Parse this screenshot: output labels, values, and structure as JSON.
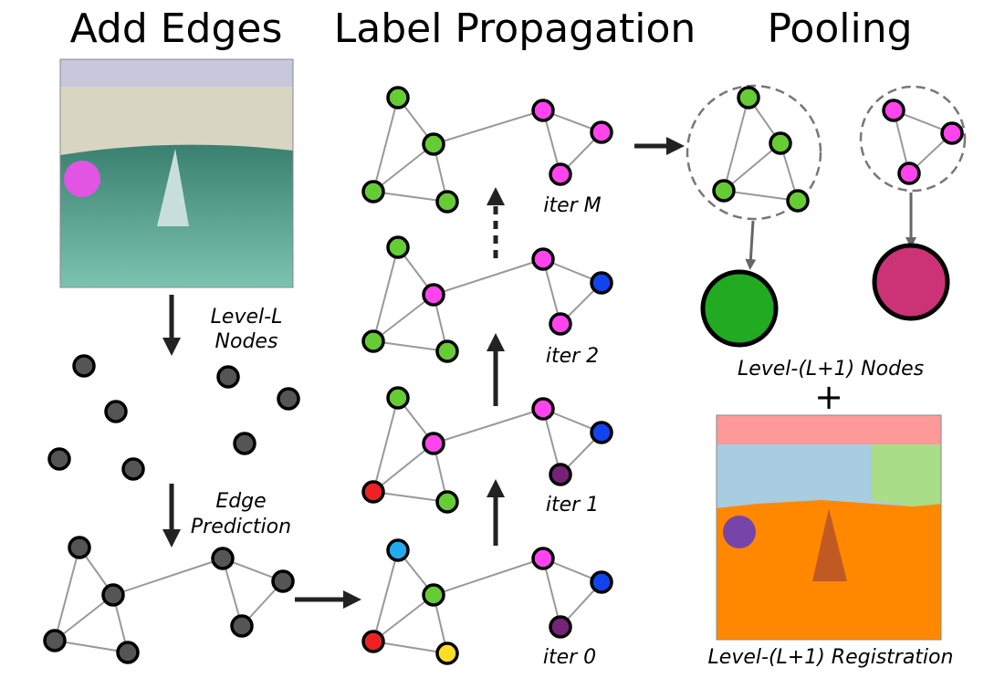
{
  "titles": {
    "add_edges": "Add Edges",
    "label_propagation": "Label Propagation",
    "pooling": "Pooling"
  },
  "labels": {
    "level_l_1": "Level-L",
    "level_l_2": "Nodes",
    "edge_pred_1": "Edge",
    "edge_pred_2": "Prediction",
    "iter_0": "iter 0",
    "iter_1": "iter 1",
    "iter_2": "iter 2",
    "iter_m": "iter M",
    "level_l1_nodes": "Level-(L+1) Nodes",
    "plus": "+",
    "level_l1_registration": "Level-(L+1) Registration"
  },
  "colors": {
    "node_gray": "#555555",
    "green": "#66cc33",
    "magenta": "#ff44ee",
    "blue": "#1144ee",
    "purple": "#772277",
    "red": "#ee2222",
    "yellow": "#ffdd22",
    "cyan": "#22aaee",
    "pooled_green": "#22aa22",
    "pooled_magenta": "#cc3377",
    "reg_sky": "#ff9999",
    "reg_blue": "#a8cce0",
    "reg_green": "#aadd88",
    "reg_orange": "#ff8800",
    "reg_purple": "#7744aa",
    "reg_sail": "#c05a22"
  }
}
